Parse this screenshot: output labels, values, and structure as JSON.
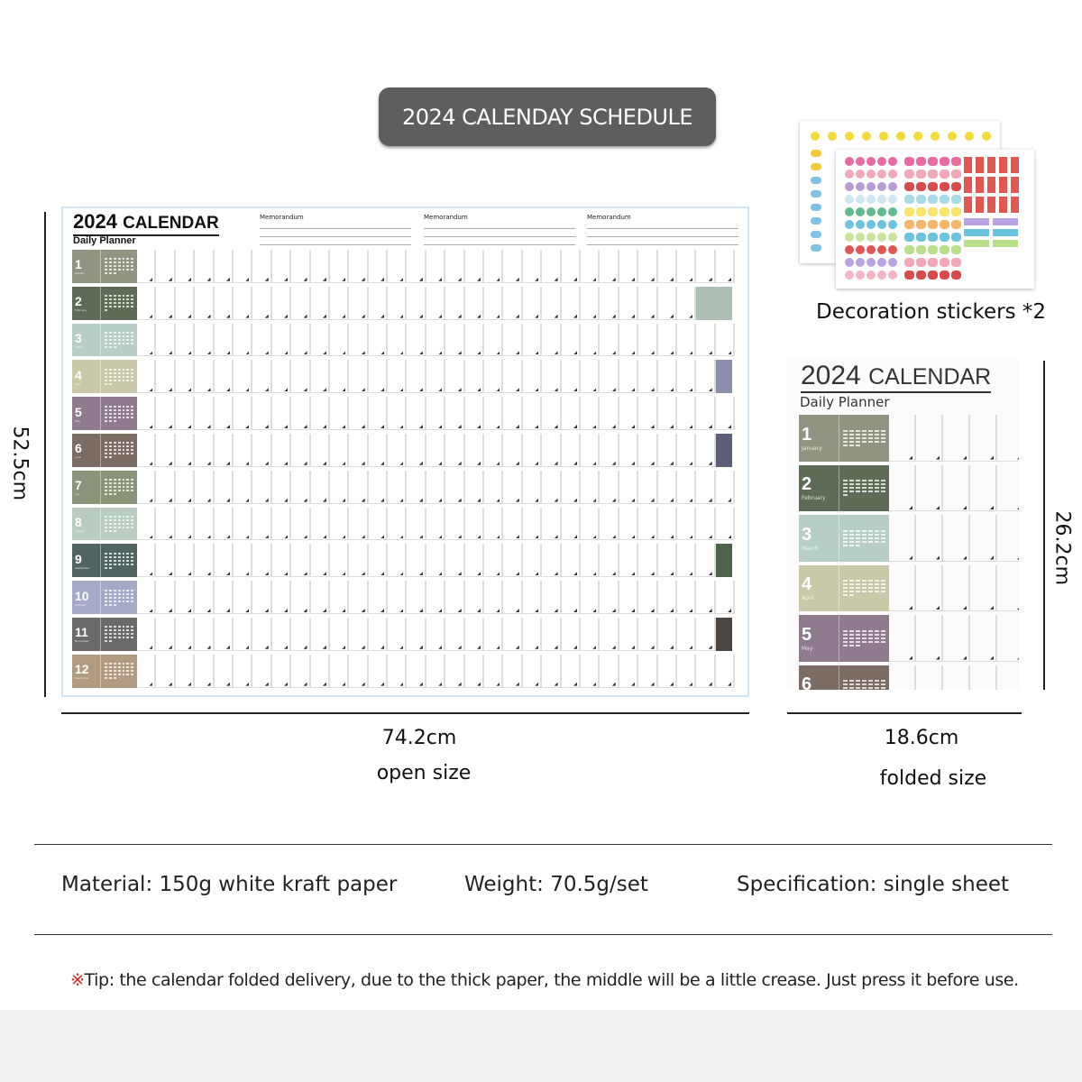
{
  "banner": "2024 CALENDAY SCHEDULE",
  "calendar": {
    "title_year": "2024",
    "title_word": "CALENDAR",
    "subtitle": "Daily Planner",
    "memo_label": "Memorandum",
    "months": [
      {
        "num": "1",
        "name": "January",
        "color": "#8f9581",
        "days": 31
      },
      {
        "num": "2",
        "name": "February",
        "color": "#5e6b56",
        "days": 29
      },
      {
        "num": "3",
        "name": "March",
        "color": "#b7cdc8",
        "days": 31
      },
      {
        "num": "4",
        "name": "April",
        "color": "#c9c8a9",
        "days": 30
      },
      {
        "num": "5",
        "name": "May",
        "color": "#8f7b8d",
        "days": 31
      },
      {
        "num": "6",
        "name": "June",
        "color": "#7b6c64",
        "days": 30
      },
      {
        "num": "7",
        "name": "July",
        "color": "#8a9479",
        "days": 31
      },
      {
        "num": "8",
        "name": "August",
        "color": "#b9ccc0",
        "days": 31
      },
      {
        "num": "9",
        "name": "September",
        "color": "#506562",
        "days": 30
      },
      {
        "num": "10",
        "name": "October",
        "color": "#a6aac9",
        "days": 31
      },
      {
        "num": "11",
        "name": "November",
        "color": "#6b6a68",
        "days": 30
      },
      {
        "num": "12",
        "name": "December",
        "color": "#b19b81",
        "days": 31
      }
    ],
    "quote_colors": {
      "2": "#aebfb4",
      "4": "#8d8fae",
      "6": "#5d5e78",
      "9": "#4b6347",
      "11": "#4c4540"
    }
  },
  "stickers": {
    "label": "Decoration stickers *2"
  },
  "dimensions": {
    "height_open": "52.5cm",
    "width_open": "74.2cm",
    "open_label": "open size",
    "height_folded": "26.2cm",
    "width_folded": "18.6cm",
    "folded_label": "folded size"
  },
  "specs": {
    "material": "Material: 150g white kraft paper",
    "weight": "Weight: 70.5g/set",
    "specification": "Specification: single sheet"
  },
  "tip": {
    "mark": "※",
    "text": "Tip: the calendar folded delivery, due to the thick paper, the middle will be a little crease. Just press it before use."
  }
}
